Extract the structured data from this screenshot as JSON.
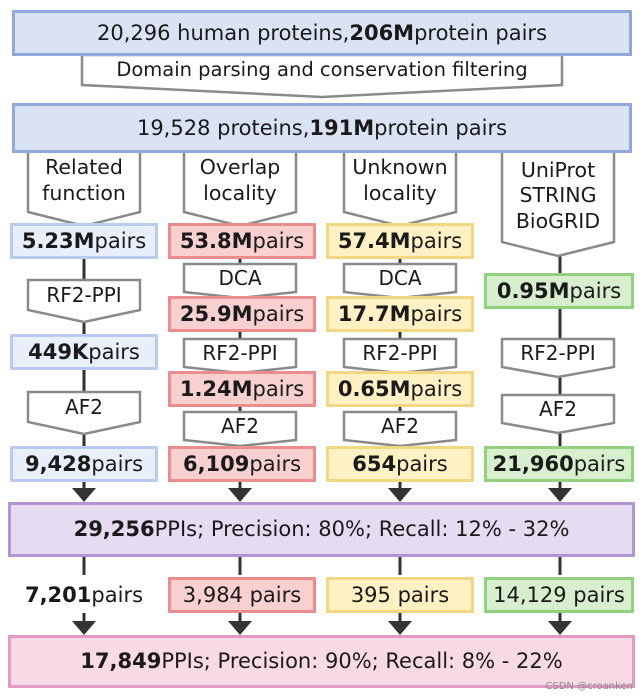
{
  "header": {
    "prefix": "20,296 human proteins, ",
    "bold": "206M",
    "suffix": " protein pairs"
  },
  "parsing_step": "Domain parsing and conservation filtering",
  "filtered": {
    "prefix": "19,528 proteins, ",
    "bold": "191M",
    "suffix": " protein pairs"
  },
  "columns": [
    {
      "source_lines": [
        "Related",
        "function"
      ],
      "color": "#dae3f3",
      "counts": [
        {
          "bold": "5.23M",
          "rest": " pairs"
        },
        {
          "bold": "449K",
          "rest": " pairs"
        },
        {
          "bold": "9,428",
          "rest": " pairs"
        }
      ],
      "steps": [
        "RF2-PPI",
        "AF2"
      ],
      "final": {
        "bold": "7,201",
        "rest": " pairs"
      }
    },
    {
      "source_lines": [
        "Overlap",
        "locality"
      ],
      "color": "#f8cecc",
      "counts": [
        {
          "bold": "53.8M",
          "rest": " pairs"
        },
        {
          "bold": "25.9M",
          "rest": " pairs"
        },
        {
          "bold": "1.24M",
          "rest": " pairs"
        },
        {
          "bold": "6,109",
          "rest": " pairs"
        }
      ],
      "steps": [
        "DCA",
        "RF2-PPI",
        "AF2"
      ],
      "final": {
        "bold": "",
        "rest": "3,984 pairs"
      }
    },
    {
      "source_lines": [
        "Unknown",
        "locality"
      ],
      "color": "#fff2cc",
      "counts": [
        {
          "bold": "57.4M",
          "rest": " pairs"
        },
        {
          "bold": "17.7M",
          "rest": " pairs"
        },
        {
          "bold": "0.65M",
          "rest": " pairs"
        },
        {
          "bold": "654",
          "rest": " pairs"
        }
      ],
      "steps": [
        "DCA",
        "RF2-PPI",
        "AF2"
      ],
      "final": {
        "bold": "",
        "rest": "395 pairs"
      }
    },
    {
      "source_lines": [
        "UniProt",
        "STRING",
        "BioGRID"
      ],
      "color": "#d5e8d4",
      "counts": [
        {
          "bold": "0.95M",
          "rest": " pairs"
        },
        {
          "bold": "21,960",
          "rest": " pairs"
        }
      ],
      "steps": [
        "RF2-PPI",
        "AF2"
      ],
      "final": {
        "bold": "",
        "rest": "14,129 pairs"
      }
    }
  ],
  "combined_1": {
    "bold": "29,256",
    "rest": " PPIs; Precision: 80%; Recall: 12% - 32%"
  },
  "combined_2": {
    "bold": "17,849",
    "rest": " PPIs; Precision: 90%; Recall: 8% - 22%"
  },
  "watermark": "CSDN @croanken"
}
